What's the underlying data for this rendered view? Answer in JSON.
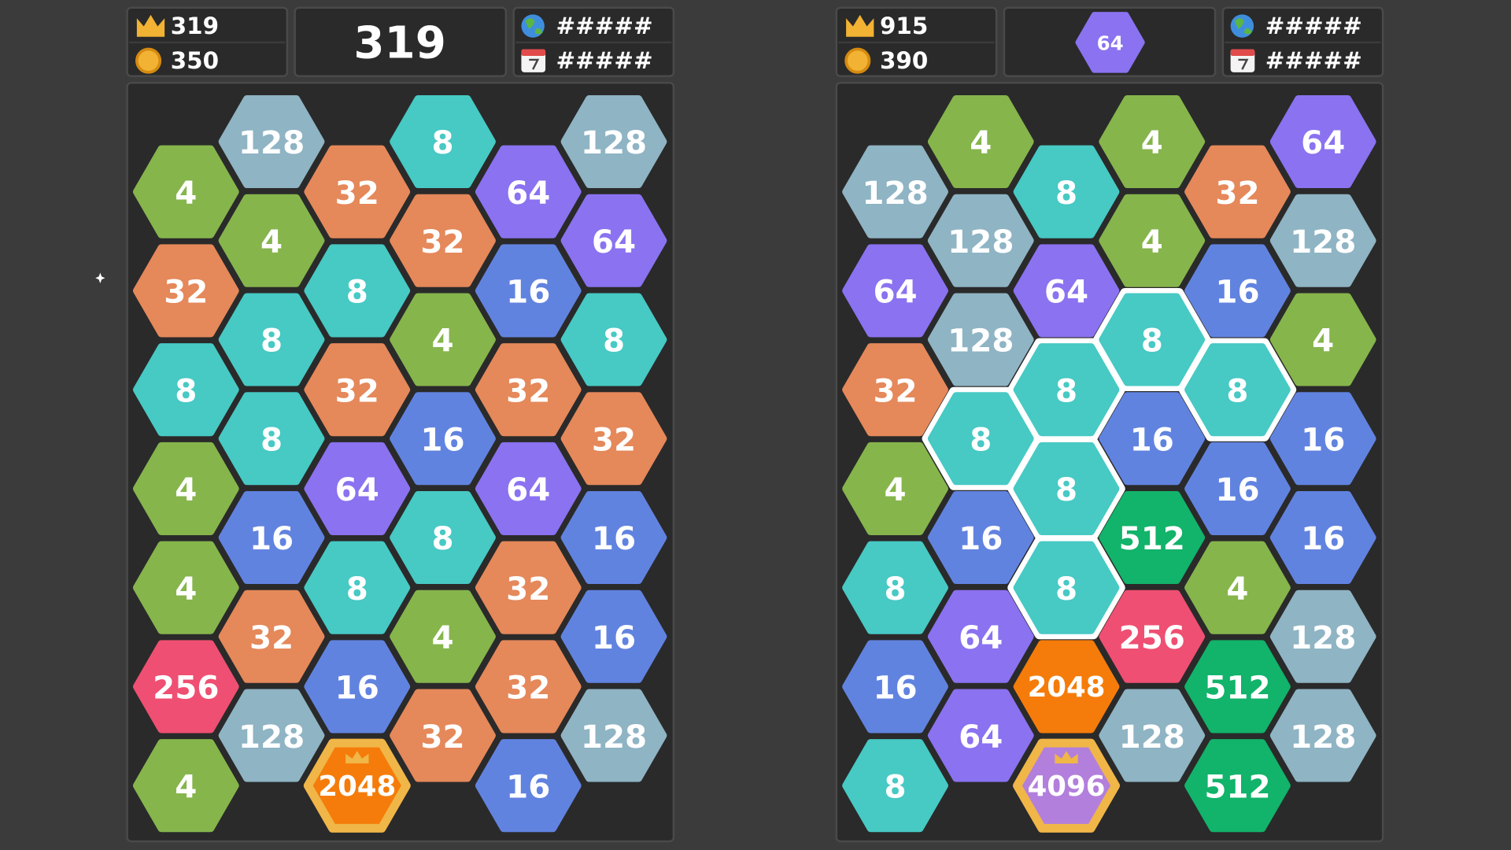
{
  "panels": [
    {
      "best": "319",
      "coins": "350",
      "score": "319",
      "world": "#####",
      "daily": "#####",
      "columns": [
        [
          "4",
          "32",
          "8",
          "4",
          "4",
          "256",
          "4"
        ],
        [
          "128",
          "4",
          "8",
          "8",
          "16",
          "32",
          "128"
        ],
        [
          "32",
          "8",
          "32",
          "64",
          "8",
          "16",
          "2048"
        ],
        [
          "8",
          "32",
          "4",
          "16",
          "8",
          "4",
          "32"
        ],
        [
          "64",
          "16",
          "32",
          "64",
          "32",
          "32",
          "16"
        ],
        [
          "128",
          "64",
          "8",
          "32",
          "16",
          "16",
          "128"
        ]
      ]
    },
    {
      "best": "915",
      "coins": "390",
      "next": "64",
      "world": "#####",
      "daily": "#####",
      "columns": [
        [
          "128",
          "64",
          "32",
          "4",
          "8",
          "16",
          "8"
        ],
        [
          "4",
          "128",
          "128",
          "8",
          "16",
          "64",
          "64"
        ],
        [
          "8",
          "64",
          "8",
          "8",
          "8",
          "2048",
          "4096"
        ],
        [
          "4",
          "4",
          "8",
          "16",
          "512",
          "256",
          "128"
        ],
        [
          "32",
          "16",
          "8",
          "16",
          "4",
          "512",
          "512"
        ],
        [
          "64",
          "128",
          "4",
          "16",
          "16",
          "128",
          "128"
        ]
      ]
    }
  ]
}
